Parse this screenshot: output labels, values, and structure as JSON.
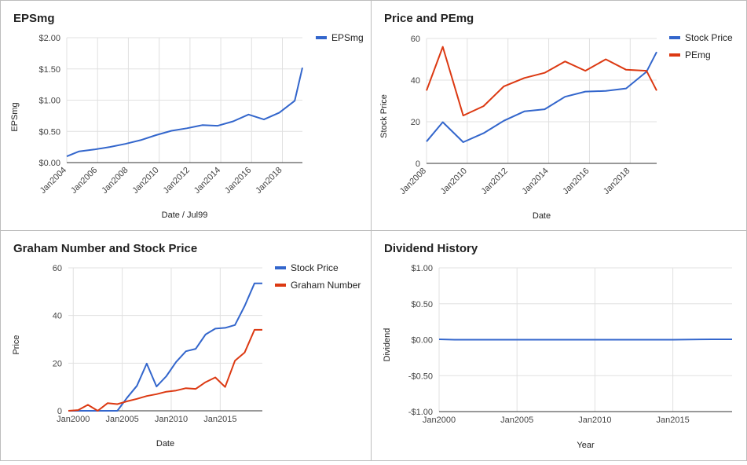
{
  "chart_data": [
    {
      "id": "eps",
      "type": "line",
      "title": "EPSmg",
      "xlabel": "Date / Jul99",
      "ylabel": "EPSmg",
      "xlim": [
        2004.0,
        2019.3
      ],
      "ylim": [
        0,
        2
      ],
      "yticks": [
        0,
        0.5,
        1.0,
        1.5,
        2.0
      ],
      "ytick_labels": [
        "$0.00",
        "$0.50",
        "$1.00",
        "$1.50",
        "$2.00"
      ],
      "xticks": [
        2004,
        2006,
        2008,
        2010,
        2012,
        2014,
        2016,
        2018
      ],
      "xtick_labels": [
        "Jan2004",
        "Jan2006",
        "Jan2008",
        "Jan2010",
        "Jan2012",
        "Jan2014",
        "Jan2016",
        "Jan2018"
      ],
      "xtick_rotated": true,
      "grid": true,
      "legend": "right",
      "series": [
        {
          "name": "EPSmg",
          "color": "#3366cc",
          "x": [
            2004.0,
            2004.8,
            2005.8,
            2006.8,
            2007.8,
            2008.8,
            2009.8,
            2010.8,
            2011.8,
            2012.8,
            2013.8,
            2014.8,
            2015.8,
            2016.8,
            2017.8,
            2018.8,
            2019.3
          ],
          "y": [
            0.1,
            0.18,
            0.21,
            0.25,
            0.3,
            0.36,
            0.44,
            0.51,
            0.55,
            0.6,
            0.59,
            0.66,
            0.77,
            0.69,
            0.8,
            0.99,
            1.52
          ]
        }
      ]
    },
    {
      "id": "pe",
      "type": "line",
      "title": "Price and PEmg",
      "xlabel": "Date",
      "ylabel": "Stock Price",
      "xlim": [
        2008.0,
        2019.3
      ],
      "ylim": [
        0,
        60
      ],
      "yticks": [
        0,
        20,
        40,
        60
      ],
      "ytick_labels": [
        "0",
        "20",
        "40",
        "60"
      ],
      "xticks": [
        2008,
        2010,
        2012,
        2014,
        2016,
        2018
      ],
      "xtick_labels": [
        "Jan2008",
        "Jan2010",
        "Jan2012",
        "Jan2014",
        "Jan2016",
        "Jan2018"
      ],
      "xtick_rotated": true,
      "grid": true,
      "legend": "right",
      "series": [
        {
          "name": "Stock Price",
          "color": "#3366cc",
          "x": [
            2008.0,
            2008.8,
            2009.8,
            2010.8,
            2011.8,
            2012.8,
            2013.8,
            2014.8,
            2015.8,
            2016.8,
            2017.8,
            2018.8,
            2019.3
          ],
          "y": [
            10.5,
            19.8,
            10.2,
            14.5,
            20.5,
            25.0,
            26.0,
            32.0,
            34.5,
            34.8,
            36.0,
            44.0,
            53.5
          ]
        },
        {
          "name": "PEmg",
          "color": "#dc3912",
          "x": [
            2008.0,
            2008.8,
            2009.8,
            2010.8,
            2011.8,
            2012.8,
            2013.8,
            2014.8,
            2015.8,
            2016.8,
            2017.8,
            2018.8,
            2019.3
          ],
          "y": [
            35.0,
            56.0,
            23.0,
            27.5,
            37.0,
            41.0,
            43.5,
            49.0,
            44.5,
            50.0,
            45.0,
            44.5,
            35.0
          ]
        }
      ]
    },
    {
      "id": "graham",
      "type": "line",
      "title": "Graham Number and Stock Price",
      "xlabel": "Date",
      "ylabel": "Price",
      "xlim": [
        1999.5,
        2019.3
      ],
      "ylim": [
        0,
        60
      ],
      "yticks": [
        0,
        20,
        40,
        60
      ],
      "ytick_labels": [
        "0",
        "20",
        "40",
        "60"
      ],
      "xticks": [
        2000,
        2005,
        2010,
        2015
      ],
      "xtick_labels": [
        "Jan2000",
        "Jan2005",
        "Jan2010",
        "Jan2015"
      ],
      "xtick_rotated": false,
      "grid": true,
      "legend": "right",
      "series": [
        {
          "name": "Stock Price",
          "color": "#3366cc",
          "x": [
            1999.5,
            2000.5,
            2001.5,
            2002.5,
            2003.5,
            2004.5,
            2005.5,
            2006.5,
            2007.5,
            2008.5,
            2009.5,
            2010.5,
            2011.5,
            2012.5,
            2013.5,
            2014.5,
            2015.5,
            2016.5,
            2017.5,
            2018.5,
            2019.3
          ],
          "y": [
            0,
            0,
            0,
            0,
            0,
            0,
            5.5,
            10.5,
            19.8,
            10.2,
            14.5,
            20.5,
            25.0,
            26.0,
            32.0,
            34.5,
            34.8,
            36.0,
            44.0,
            53.5,
            53.5
          ]
        },
        {
          "name": "Graham Number",
          "color": "#dc3912",
          "x": [
            1999.5,
            2000.5,
            2001.5,
            2002.5,
            2003.5,
            2004.5,
            2005.5,
            2006.5,
            2007.5,
            2008.5,
            2009.5,
            2010.5,
            2011.5,
            2012.5,
            2013.5,
            2014.5,
            2015.5,
            2016.5,
            2017.5,
            2018.5,
            2019.3
          ],
          "y": [
            0,
            0.3,
            2.5,
            0,
            3.2,
            2.8,
            4.0,
            5.0,
            6.2,
            7.0,
            8.0,
            8.5,
            9.5,
            9.2,
            12.0,
            14.0,
            10.0,
            21.0,
            24.5,
            34.0,
            34.0
          ]
        }
      ]
    },
    {
      "id": "dividend",
      "type": "line",
      "title": "Dividend History",
      "xlabel": "Year",
      "ylabel": "Dividend",
      "xlim": [
        2000.0,
        2018.8
      ],
      "ylim": [
        -1,
        1
      ],
      "yticks": [
        -1,
        -0.5,
        0,
        0.5,
        1
      ],
      "ytick_labels": [
        "-$1.00",
        "-$0.50",
        "$0.00",
        "$0.50",
        "$1.00"
      ],
      "xticks": [
        2000,
        2005,
        2010,
        2015
      ],
      "xtick_labels": [
        "Jan2000",
        "Jan2005",
        "Jan2010",
        "Jan2015"
      ],
      "xtick_rotated": false,
      "grid": true,
      "legend": "none",
      "series": [
        {
          "color": "#3366cc",
          "x": [
            2000.0,
            2001.0,
            2005.0,
            2010.0,
            2015.0,
            2017.5,
            2018.8
          ],
          "y": [
            0.005,
            0.0,
            0.0,
            0.0,
            0.0,
            0.005,
            0.005
          ]
        }
      ]
    }
  ]
}
